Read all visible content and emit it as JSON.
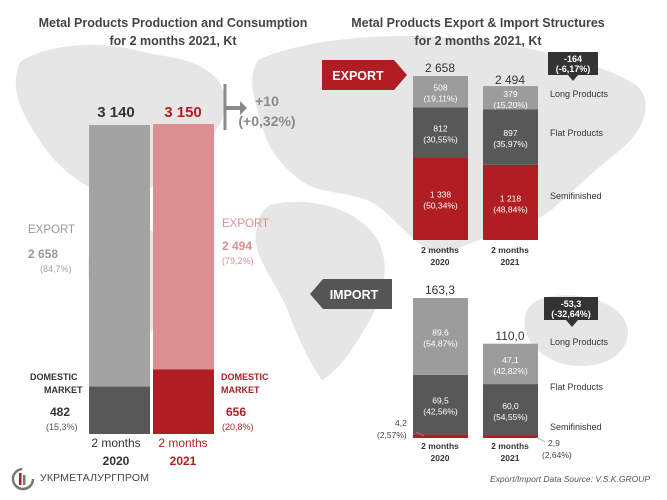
{
  "colors": {
    "gray_bar": "#a3a3a3",
    "dark_bar": "#585858",
    "light_gray_bar": "#9c9c9c",
    "red": "#b01e23",
    "pink": "#dc8f91",
    "map": "#e5e5e5",
    "text_gray": "#8a8a8a"
  },
  "chart_data": [
    {
      "type": "bar",
      "title": "Metal Products Production and Consumption",
      "subtitle": "for 2 months 2021, Kt",
      "categories": [
        "2 months 2020",
        "2 months 2021"
      ],
      "totals": [
        "3 140",
        "3 150"
      ],
      "change": [
        "+10",
        "(+0,32%)"
      ],
      "series": [
        {
          "name": "EXPORT",
          "values": [
            2658,
            2494
          ],
          "labels": [
            "2 658",
            "2 494"
          ],
          "shares": [
            "(84,7%)",
            "(79,2%)"
          ]
        },
        {
          "name": "DOMESTIC MARKET",
          "values": [
            482,
            656
          ],
          "labels": [
            "482",
            "656"
          ],
          "shares": [
            "(15,3%)",
            "(20,8%)"
          ]
        }
      ],
      "ylim": [
        0,
        3150
      ]
    },
    {
      "type": "bar",
      "title": "Metal Products Export & Import Structures",
      "subtitle": "for 2 months 2021, Kt",
      "panels": [
        {
          "name": "EXPORT",
          "categories": [
            [
              "2 months",
              "2020"
            ],
            [
              "2 months",
              "2021"
            ]
          ],
          "totals": [
            "2 658",
            "2 494"
          ],
          "change": [
            "-164",
            "(-6,17%)"
          ],
          "series": [
            {
              "name": "Long Products",
              "values": [
                508,
                379
              ],
              "labels": [
                "508",
                "379"
              ],
              "shares": [
                "(19,11%)",
                "(15,20%)"
              ]
            },
            {
              "name": "Flat Products",
              "values": [
                812,
                897
              ],
              "labels": [
                "812",
                "897"
              ],
              "shares": [
                "(30,55%)",
                "(35,97%)"
              ]
            },
            {
              "name": "Semifinished",
              "values": [
                1338,
                1218
              ],
              "labels": [
                "1 338",
                "1 218"
              ],
              "shares": [
                "(50,34%)",
                "(48,84%)"
              ]
            }
          ],
          "ylim": [
            0,
            2658
          ]
        },
        {
          "name": "IMPORT",
          "categories": [
            [
              "2 months",
              "2020"
            ],
            [
              "2 months",
              "2021"
            ]
          ],
          "totals": [
            "163,3",
            "110,0"
          ],
          "change": [
            "-53,3",
            "(-32,64%)"
          ],
          "series": [
            {
              "name": "Long Products",
              "values": [
                89.6,
                47.1
              ],
              "labels": [
                "89,6",
                "47,1"
              ],
              "shares": [
                "(54,87%)",
                "(42,82%)"
              ]
            },
            {
              "name": "Flat Products",
              "values": [
                69.5,
                60.0
              ],
              "labels": [
                "69,5",
                "60,0"
              ],
              "shares": [
                "(42,56%)",
                "(54,55%)"
              ]
            },
            {
              "name": "Semifinished",
              "values": [
                4.2,
                2.9
              ],
              "labels": [
                "4,2",
                "2,9"
              ],
              "shares": [
                "(2,57%)",
                "(2,64%)"
              ]
            }
          ],
          "ylim": [
            0,
            163.3
          ]
        }
      ]
    }
  ],
  "footer": {
    "source": "Export/Import Data Source: V.S.K.GROUP",
    "logo_text": "УКРМЕТАЛУРГПРОМ"
  }
}
